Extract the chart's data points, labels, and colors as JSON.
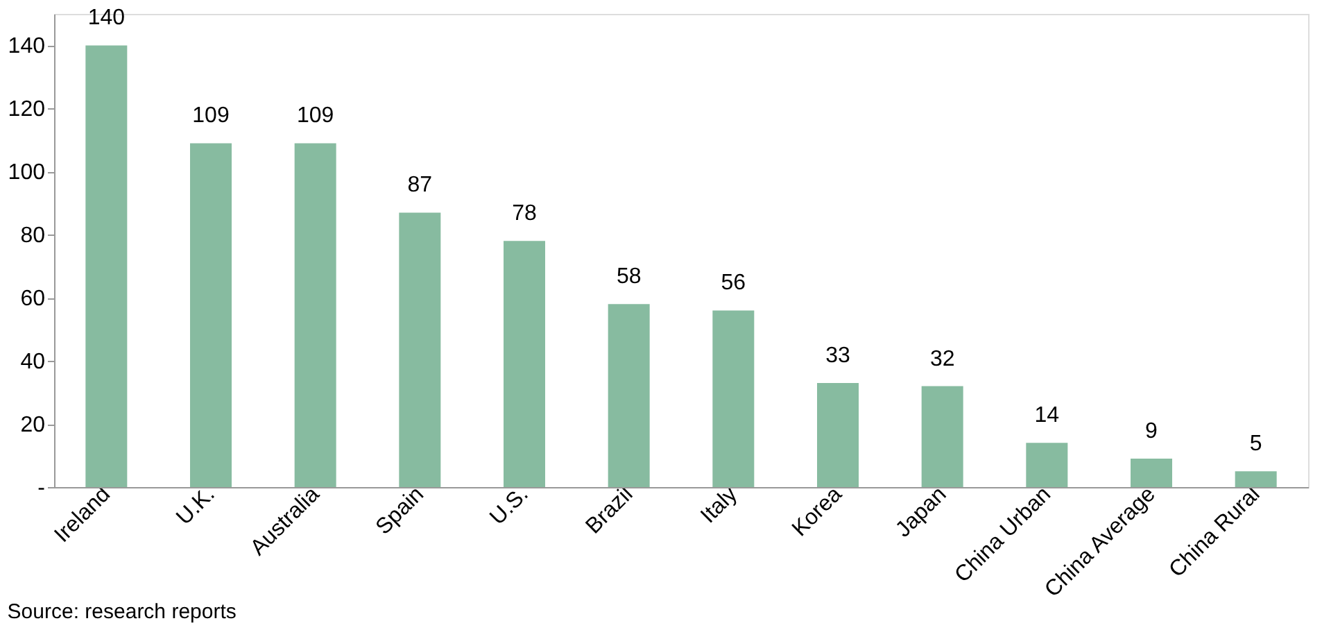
{
  "chart_data": {
    "type": "bar",
    "categories": [
      "Ireland",
      "U.K.",
      "Australia",
      "Spain",
      "U.S.",
      "Brazil",
      "Italy",
      "Korea",
      "Japan",
      "China Urban",
      "China Average",
      "China Rural"
    ],
    "values": [
      140,
      109,
      109,
      87,
      78,
      58,
      56,
      33,
      32,
      14,
      9,
      5
    ],
    "color": "#87bba0",
    "ylim": [
      0,
      150
    ],
    "yticks": [
      {
        "value": 0,
        "label": "-"
      },
      20,
      40,
      60,
      80,
      100,
      120,
      140
    ],
    "grid": false,
    "data_labels": true,
    "annotations": [
      "Source: research reports"
    ]
  }
}
